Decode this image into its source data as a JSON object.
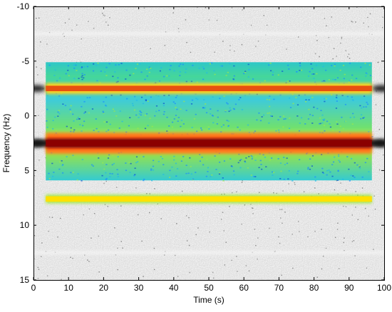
{
  "chart_data": {
    "type": "heatmap",
    "title": "",
    "xlabel": "Time (s)",
    "ylabel": "Frequency (Hz)",
    "xlim": [
      0,
      100
    ],
    "ylim": [
      -10,
      15
    ],
    "y_axis_inverted": true,
    "x_ticks": [
      0,
      10,
      20,
      30,
      40,
      50,
      60,
      70,
      80,
      90,
      100
    ],
    "y_ticks": [
      -10,
      -5,
      0,
      5,
      10,
      15
    ],
    "grid": false,
    "legend": "none",
    "colormap_background": "grayscale",
    "colormap_overlay": "jet",
    "overlay_region": {
      "time_start": 3.5,
      "time_end": 96.5,
      "freq_start": -4.9,
      "freq_end": 5.9
    },
    "bands": [
      {
        "frequency": -7.5,
        "time_start": 0,
        "time_end": 100,
        "layer": "background",
        "color": "#f4f4f4",
        "halfwidth": 0.15
      },
      {
        "frequency": -2.5,
        "time_start": 3.5,
        "time_end": 96.5,
        "layer": "overlay",
        "color": "#e85010",
        "halfwidth": 0.25
      },
      {
        "frequency": 2.5,
        "time_start": 3.5,
        "time_end": 96.5,
        "layer": "overlay",
        "color": "#8b0000",
        "halfwidth": 0.3
      },
      {
        "frequency": 7.6,
        "time_start": 3.5,
        "time_end": 96.5,
        "layer": "overlay",
        "color": "#ffe000",
        "halfwidth": 0.25
      },
      {
        "frequency": 12.5,
        "time_start": 0,
        "time_end": 100,
        "layer": "background",
        "color": "#f4f4f4",
        "halfwidth": 0.15
      }
    ],
    "edge_artifacts": [
      {
        "frequency": -2.5,
        "time_start": 0,
        "time_end": 5,
        "color": "#2a2a2a"
      },
      {
        "frequency": 2.5,
        "time_start": 0,
        "time_end": 5,
        "color": "#101010"
      },
      {
        "frequency": -2.5,
        "time_start": 95,
        "time_end": 100,
        "color": "#2a2a2a"
      },
      {
        "frequency": 2.5,
        "time_start": 95,
        "time_end": 100,
        "color": "#101010"
      }
    ]
  }
}
